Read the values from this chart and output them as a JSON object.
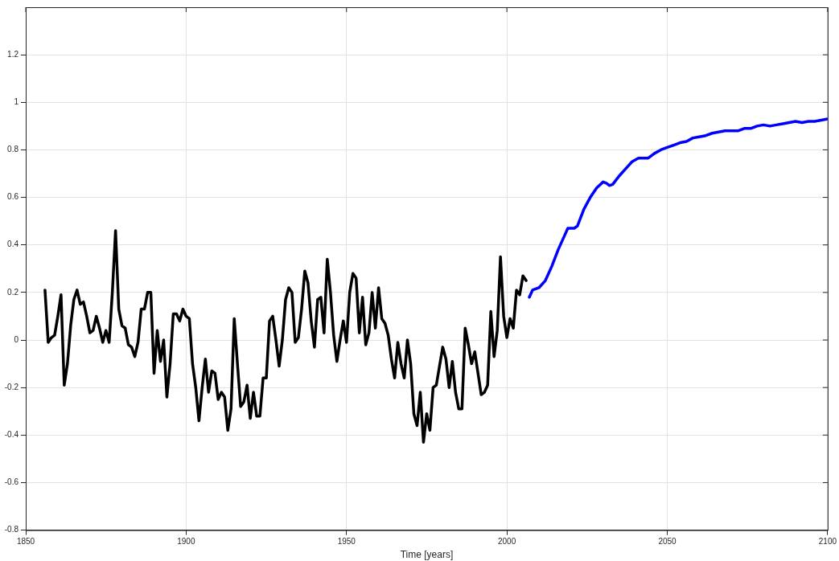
{
  "chart_data": {
    "type": "line",
    "xlabel": "Time [years]",
    "xlim": [
      1850,
      2100
    ],
    "xticks": [
      1850,
      1900,
      1950,
      2000,
      2050,
      2100
    ],
    "ylim": [
      -0.8,
      1.4
    ],
    "yticks": [
      -0.8,
      -0.6,
      -0.4,
      -0.2,
      0,
      0.2,
      0.4,
      0.6,
      0.8,
      1,
      1.2
    ],
    "grid": true,
    "marker": "none",
    "line_style": "solid",
    "series": [
      {
        "color": "#000000",
        "x": [
          1856,
          1857,
          1858,
          1859,
          1860,
          1861,
          1862,
          1863,
          1864,
          1865,
          1866,
          1867,
          1868,
          1869,
          1870,
          1871,
          1872,
          1873,
          1874,
          1875,
          1876,
          1877,
          1878,
          1879,
          1880,
          1881,
          1882,
          1883,
          1884,
          1885,
          1886,
          1887,
          1888,
          1889,
          1890,
          1891,
          1892,
          1893,
          1894,
          1895,
          1896,
          1897,
          1898,
          1899,
          1900,
          1901,
          1902,
          1903,
          1904,
          1905,
          1906,
          1907,
          1908,
          1909,
          1910,
          1911,
          1912,
          1913,
          1914,
          1915,
          1916,
          1917,
          1918,
          1919,
          1920,
          1921,
          1922,
          1923,
          1924,
          1925,
          1926,
          1927,
          1928,
          1929,
          1930,
          1931,
          1932,
          1933,
          1934,
          1935,
          1936,
          1937,
          1938,
          1939,
          1940,
          1941,
          1942,
          1943,
          1944,
          1945,
          1946,
          1947,
          1948,
          1949,
          1950,
          1951,
          1952,
          1953,
          1954,
          1955,
          1956,
          1957,
          1958,
          1959,
          1960,
          1961,
          1962,
          1963,
          1964,
          1965,
          1966,
          1967,
          1968,
          1969,
          1970,
          1971,
          1972,
          1973,
          1974,
          1975,
          1976,
          1977,
          1978,
          1979,
          1980,
          1981,
          1982,
          1983,
          1984,
          1985,
          1986,
          1987,
          1988,
          1989,
          1990,
          1991,
          1992,
          1993,
          1994,
          1995,
          1996,
          1997,
          1998,
          1999,
          2000,
          2001,
          2002,
          2003,
          2004,
          2005,
          2006
        ],
        "values": [
          0.21,
          -0.01,
          0.01,
          0.02,
          0.1,
          0.19,
          -0.19,
          -0.1,
          0.06,
          0.17,
          0.21,
          0.15,
          0.16,
          0.1,
          0.03,
          0.04,
          0.1,
          0.05,
          -0.01,
          0.04,
          -0.01,
          0.2,
          0.46,
          0.13,
          0.06,
          0.05,
          -0.02,
          -0.03,
          -0.07,
          -0.01,
          0.13,
          0.13,
          0.2,
          0.2,
          -0.14,
          0.04,
          -0.09,
          0,
          -0.24,
          -0.1,
          0.11,
          0.11,
          0.08,
          0.13,
          0.1,
          0.09,
          -0.1,
          -0.2,
          -0.34,
          -0.2,
          -0.08,
          -0.22,
          -0.13,
          -0.14,
          -0.25,
          -0.22,
          -0.24,
          -0.38,
          -0.29,
          0.09,
          -0.1,
          -0.28,
          -0.26,
          -0.19,
          -0.33,
          -0.22,
          -0.32,
          -0.32,
          -0.16,
          -0.16,
          0.08,
          0.1,
          0,
          -0.11,
          0,
          0.17,
          0.22,
          0.2,
          -0.01,
          0.01,
          0.13,
          0.29,
          0.24,
          0.08,
          -0.03,
          0.17,
          0.18,
          0.03,
          0.34,
          0.2,
          0.02,
          -0.09,
          0,
          0.08,
          -0.01,
          0.2,
          0.28,
          0.26,
          0.03,
          0.18,
          -0.02,
          0.03,
          0.2,
          0.05,
          0.22,
          0.09,
          0.07,
          0.02,
          -0.08,
          -0.16,
          -0.01,
          -0.1,
          -0.16,
          0,
          -0.1,
          -0.31,
          -0.36,
          -0.22,
          -0.43,
          -0.31,
          -0.38,
          -0.2,
          -0.19,
          -0.11,
          -0.03,
          -0.08,
          -0.2,
          -0.09,
          -0.22,
          -0.29,
          -0.29,
          0.05,
          -0.02,
          -0.1,
          -0.05,
          -0.14,
          -0.23,
          -0.22,
          -0.19,
          0.12,
          -0.07,
          0.04,
          0.35,
          0.1,
          0.01,
          0.09,
          0.05,
          0.21,
          0.19,
          0.27,
          0.25
        ]
      },
      {
        "color": "#0000ff",
        "x": [
          2007,
          2008,
          2010,
          2012,
          2014,
          2016,
          2018,
          2019,
          2020,
          2021,
          2022,
          2024,
          2026,
          2028,
          2030,
          2031,
          2032,
          2033,
          2035,
          2037,
          2039,
          2041,
          2042,
          2044,
          2046,
          2048,
          2050,
          2052,
          2054,
          2056,
          2058,
          2060,
          2062,
          2064,
          2066,
          2068,
          2070,
          2072,
          2074,
          2076,
          2078,
          2080,
          2082,
          2084,
          2086,
          2088,
          2090,
          2092,
          2094,
          2096,
          2098,
          2100
        ],
        "values": [
          0.18,
          0.21,
          0.22,
          0.25,
          0.31,
          0.38,
          0.44,
          0.47,
          0.47,
          0.47,
          0.48,
          0.55,
          0.6,
          0.64,
          0.665,
          0.66,
          0.65,
          0.655,
          0.69,
          0.72,
          0.75,
          0.765,
          0.765,
          0.765,
          0.785,
          0.8,
          0.81,
          0.82,
          0.83,
          0.835,
          0.85,
          0.855,
          0.86,
          0.87,
          0.875,
          0.88,
          0.88,
          0.88,
          0.89,
          0.89,
          0.9,
          0.905,
          0.9,
          0.905,
          0.91,
          0.915,
          0.92,
          0.915,
          0.92,
          0.92,
          0.925,
          0.93
        ]
      }
    ]
  }
}
